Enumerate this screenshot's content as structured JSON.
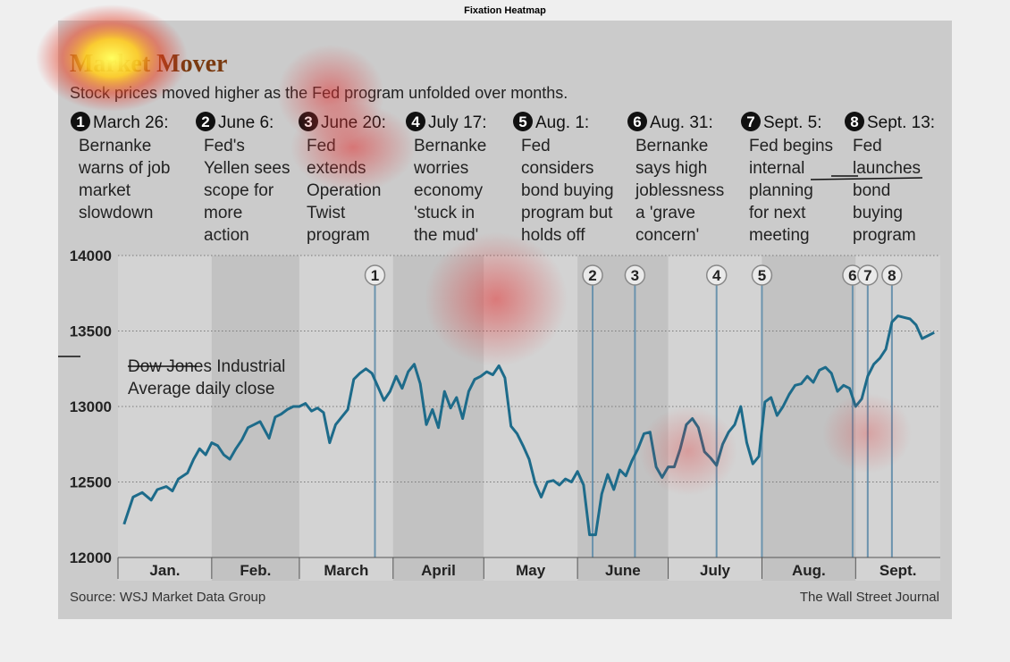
{
  "figure_title": "Fixation Heatmap",
  "colors": {
    "page_bg": "#efefef",
    "panel_bg": "#cbcbcb",
    "band_light": "#d3d3d3",
    "band_dark": "#c2c2c2",
    "line": "#1d6b8a",
    "marker": "#6b93ad",
    "headline": "#7a3a10"
  },
  "chart_data": {
    "type": "line",
    "title": "Market Mover",
    "subtitle": "Stock prices moved higher as the Fed program unfolded over months.",
    "series_label_lines": [
      "Dow Jones Industrial",
      "Average daily close"
    ],
    "ylim": [
      12000,
      14000
    ],
    "yticks": [
      12000,
      12500,
      13000,
      13500,
      14000
    ],
    "months": [
      "Jan.",
      "Feb.",
      "March",
      "April",
      "May",
      "June",
      "July",
      "Aug.",
      "Sept."
    ],
    "events": [
      {
        "num": "1",
        "date": "March 26:",
        "desc": [
          "Bernanke",
          "warns of job",
          "market",
          "slowdown"
        ],
        "day": 85
      },
      {
        "num": "2",
        "date": "June 6:",
        "desc": [
          "Fed's",
          "Yellen sees",
          "scope for",
          "more",
          "action"
        ],
        "day": 157
      },
      {
        "num": "3",
        "date": "June 20:",
        "desc": [
          "Fed",
          "extends",
          "Operation",
          "Twist",
          "program"
        ],
        "day": 171
      },
      {
        "num": "4",
        "date": "July 17:",
        "desc": [
          "Bernanke",
          "worries",
          "economy",
          "'stuck in",
          "the mud'"
        ],
        "day": 198
      },
      {
        "num": "5",
        "date": "Aug. 1:",
        "desc": [
          "Fed",
          "considers",
          "bond buying",
          "program but",
          "holds off"
        ],
        "day": 213
      },
      {
        "num": "6",
        "date": "Aug. 31:",
        "desc": [
          "Bernanke",
          "says high",
          "joblessness",
          "a 'grave",
          "concern'"
        ],
        "day": 243
      },
      {
        "num": "7",
        "date": "Sept. 5:",
        "desc": [
          "Fed begins",
          "internal",
          "planning",
          "for next",
          "meeting"
        ],
        "day": 248
      },
      {
        "num": "8",
        "date": "Sept. 13:",
        "desc": [
          "Fed",
          "launches",
          "bond",
          "buying",
          "program"
        ],
        "day": 256
      }
    ],
    "series": [
      {
        "x": [
          2,
          5,
          8,
          11,
          13,
          16,
          18,
          20,
          23,
          25,
          27,
          29,
          31,
          33,
          35,
          37,
          39,
          41,
          43,
          45,
          47,
          50,
          52,
          54,
          56,
          58,
          60,
          62,
          64,
          66,
          68,
          70,
          72,
          74,
          76,
          78,
          80,
          82,
          84,
          86,
          88,
          90,
          92,
          94,
          96,
          98,
          100,
          102,
          104,
          106,
          108,
          110,
          112,
          114,
          116,
          118,
          120,
          122,
          124,
          126,
          128,
          130,
          132,
          134,
          136,
          138,
          140,
          142,
          144,
          146,
          148,
          150,
          152,
          154,
          156,
          158,
          160,
          162,
          164,
          166,
          168,
          170,
          172,
          174,
          176,
          178,
          180,
          182,
          184,
          186,
          188,
          190,
          192,
          194,
          196,
          198,
          200,
          202,
          204,
          206,
          208,
          210,
          212,
          214,
          216,
          218,
          220,
          222,
          224,
          226,
          228,
          230,
          232,
          234,
          236,
          238,
          240,
          242,
          244,
          246,
          248,
          250,
          252,
          254,
          256,
          258,
          260,
          262,
          264,
          266,
          268,
          270
        ],
        "y": [
          12220,
          12400,
          12430,
          12380,
          12450,
          12470,
          12440,
          12520,
          12560,
          12650,
          12720,
          12680,
          12760,
          12740,
          12680,
          12650,
          12720,
          12780,
          12860,
          12880,
          12900,
          12790,
          12930,
          12950,
          12980,
          13000,
          13000,
          13020,
          12970,
          12990,
          12960,
          12760,
          12880,
          12930,
          12980,
          13180,
          13220,
          13250,
          13220,
          13130,
          13040,
          13100,
          13200,
          13120,
          13230,
          13280,
          13150,
          12880,
          12980,
          12860,
          13100,
          12990,
          13060,
          12920,
          13100,
          13180,
          13200,
          13230,
          13210,
          13270,
          13190,
          12870,
          12820,
          12740,
          12650,
          12490,
          12400,
          12500,
          12510,
          12480,
          12520,
          12500,
          12570,
          12480,
          12150,
          12150,
          12420,
          12550,
          12450,
          12580,
          12540,
          12640,
          12720,
          12820,
          12830,
          12600,
          12530,
          12600,
          12600,
          12720,
          12880,
          12920,
          12860,
          12700,
          12660,
          12610,
          12750,
          12830,
          12880,
          13000,
          12760,
          12620,
          12670,
          13030,
          13060,
          12940,
          13000,
          13080,
          13140,
          13150,
          13200,
          13160,
          13240,
          13260,
          13220,
          13100,
          13140,
          13120,
          13000,
          13050,
          13200,
          13280,
          13320,
          13380,
          13560,
          13600,
          13590,
          13580,
          13540,
          13450,
          13470,
          13490
        ]
      }
    ]
  },
  "footer": {
    "source": "Source: WSJ Market Data Group",
    "credit": "The Wall Street Journal"
  }
}
